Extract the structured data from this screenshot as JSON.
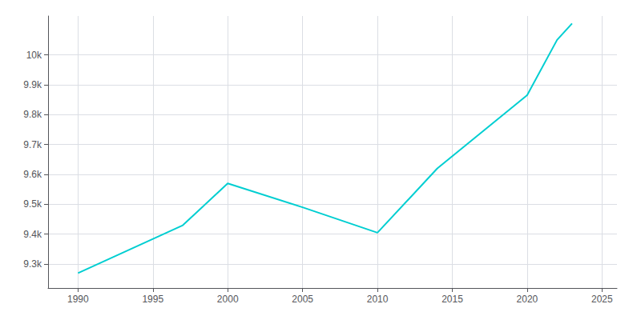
{
  "chart_data": {
    "type": "line",
    "x": [
      1990,
      1997,
      2000,
      2005,
      2010,
      2014,
      2020,
      2022,
      2023
    ],
    "values": [
      9270,
      9430,
      9570,
      9490,
      9405,
      9620,
      9865,
      10050,
      10105
    ],
    "color": "#00CED1",
    "xlim": [
      1988,
      2026
    ],
    "ylim": [
      9220,
      10130
    ],
    "xticks": [
      1990,
      1995,
      2000,
      2005,
      2010,
      2015,
      2020,
      2025
    ],
    "yticks": [
      {
        "value": 9300,
        "label": "9.3k"
      },
      {
        "value": 9400,
        "label": "9.4k"
      },
      {
        "value": 9500,
        "label": "9.5k"
      },
      {
        "value": 9600,
        "label": "9.6k"
      },
      {
        "value": 9700,
        "label": "9.7k"
      },
      {
        "value": 9800,
        "label": "9.8k"
      },
      {
        "value": 9900,
        "label": "9.9k"
      },
      {
        "value": 10000,
        "label": "10k"
      }
    ],
    "grid": true
  }
}
